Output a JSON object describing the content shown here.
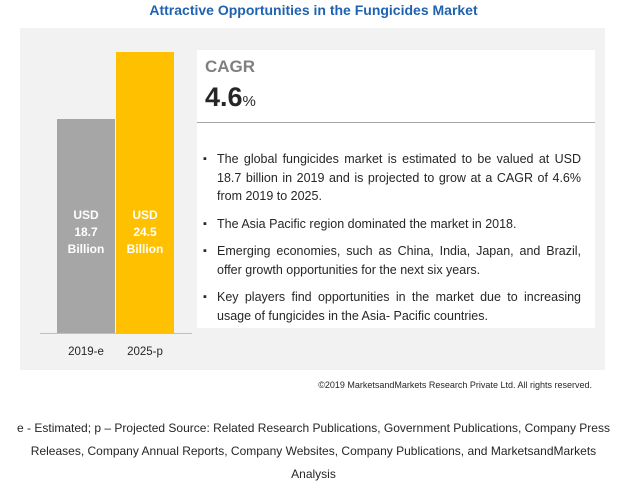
{
  "chart_data": {
    "type": "bar",
    "title": "Attractive Opportunities in the Fungicides Market",
    "categories": [
      "2019-e",
      "2025-p"
    ],
    "values": [
      18.7,
      24.5
    ],
    "value_labels": [
      "USD 18.7 Billion",
      "USD 24.5 Billion"
    ],
    "colors": [
      "#a6a6a6",
      "#ffc000"
    ],
    "cagr": {
      "label": "CAGR",
      "value": "4.6",
      "unit": "%"
    },
    "bullets": [
      "The global fungicides market is estimated to be valued at USD 18.7 billion in 2019 and is projected to grow at a CAGR of 4.6% from 2019 to 2025.",
      "The Asia Pacific region dominated the market in 2018.",
      "Emerging economies, such as China, India, Japan, and Brazil, offer growth opportunities for the next six years.",
      "Key players find opportunities in the market due to increasing usage of fungicides in the Asia- Pacific countries."
    ],
    "copyright": "©2019 MarketsandMarkets Research Private Ltd. All rights reserved.",
    "footnote": "e - Estimated; p – Projected Source: Related Research Publications, Government Publications, Company Press Releases, Company Annual Reports, Company Websites, Company Publications, and MarketsandMarkets Analysis"
  }
}
